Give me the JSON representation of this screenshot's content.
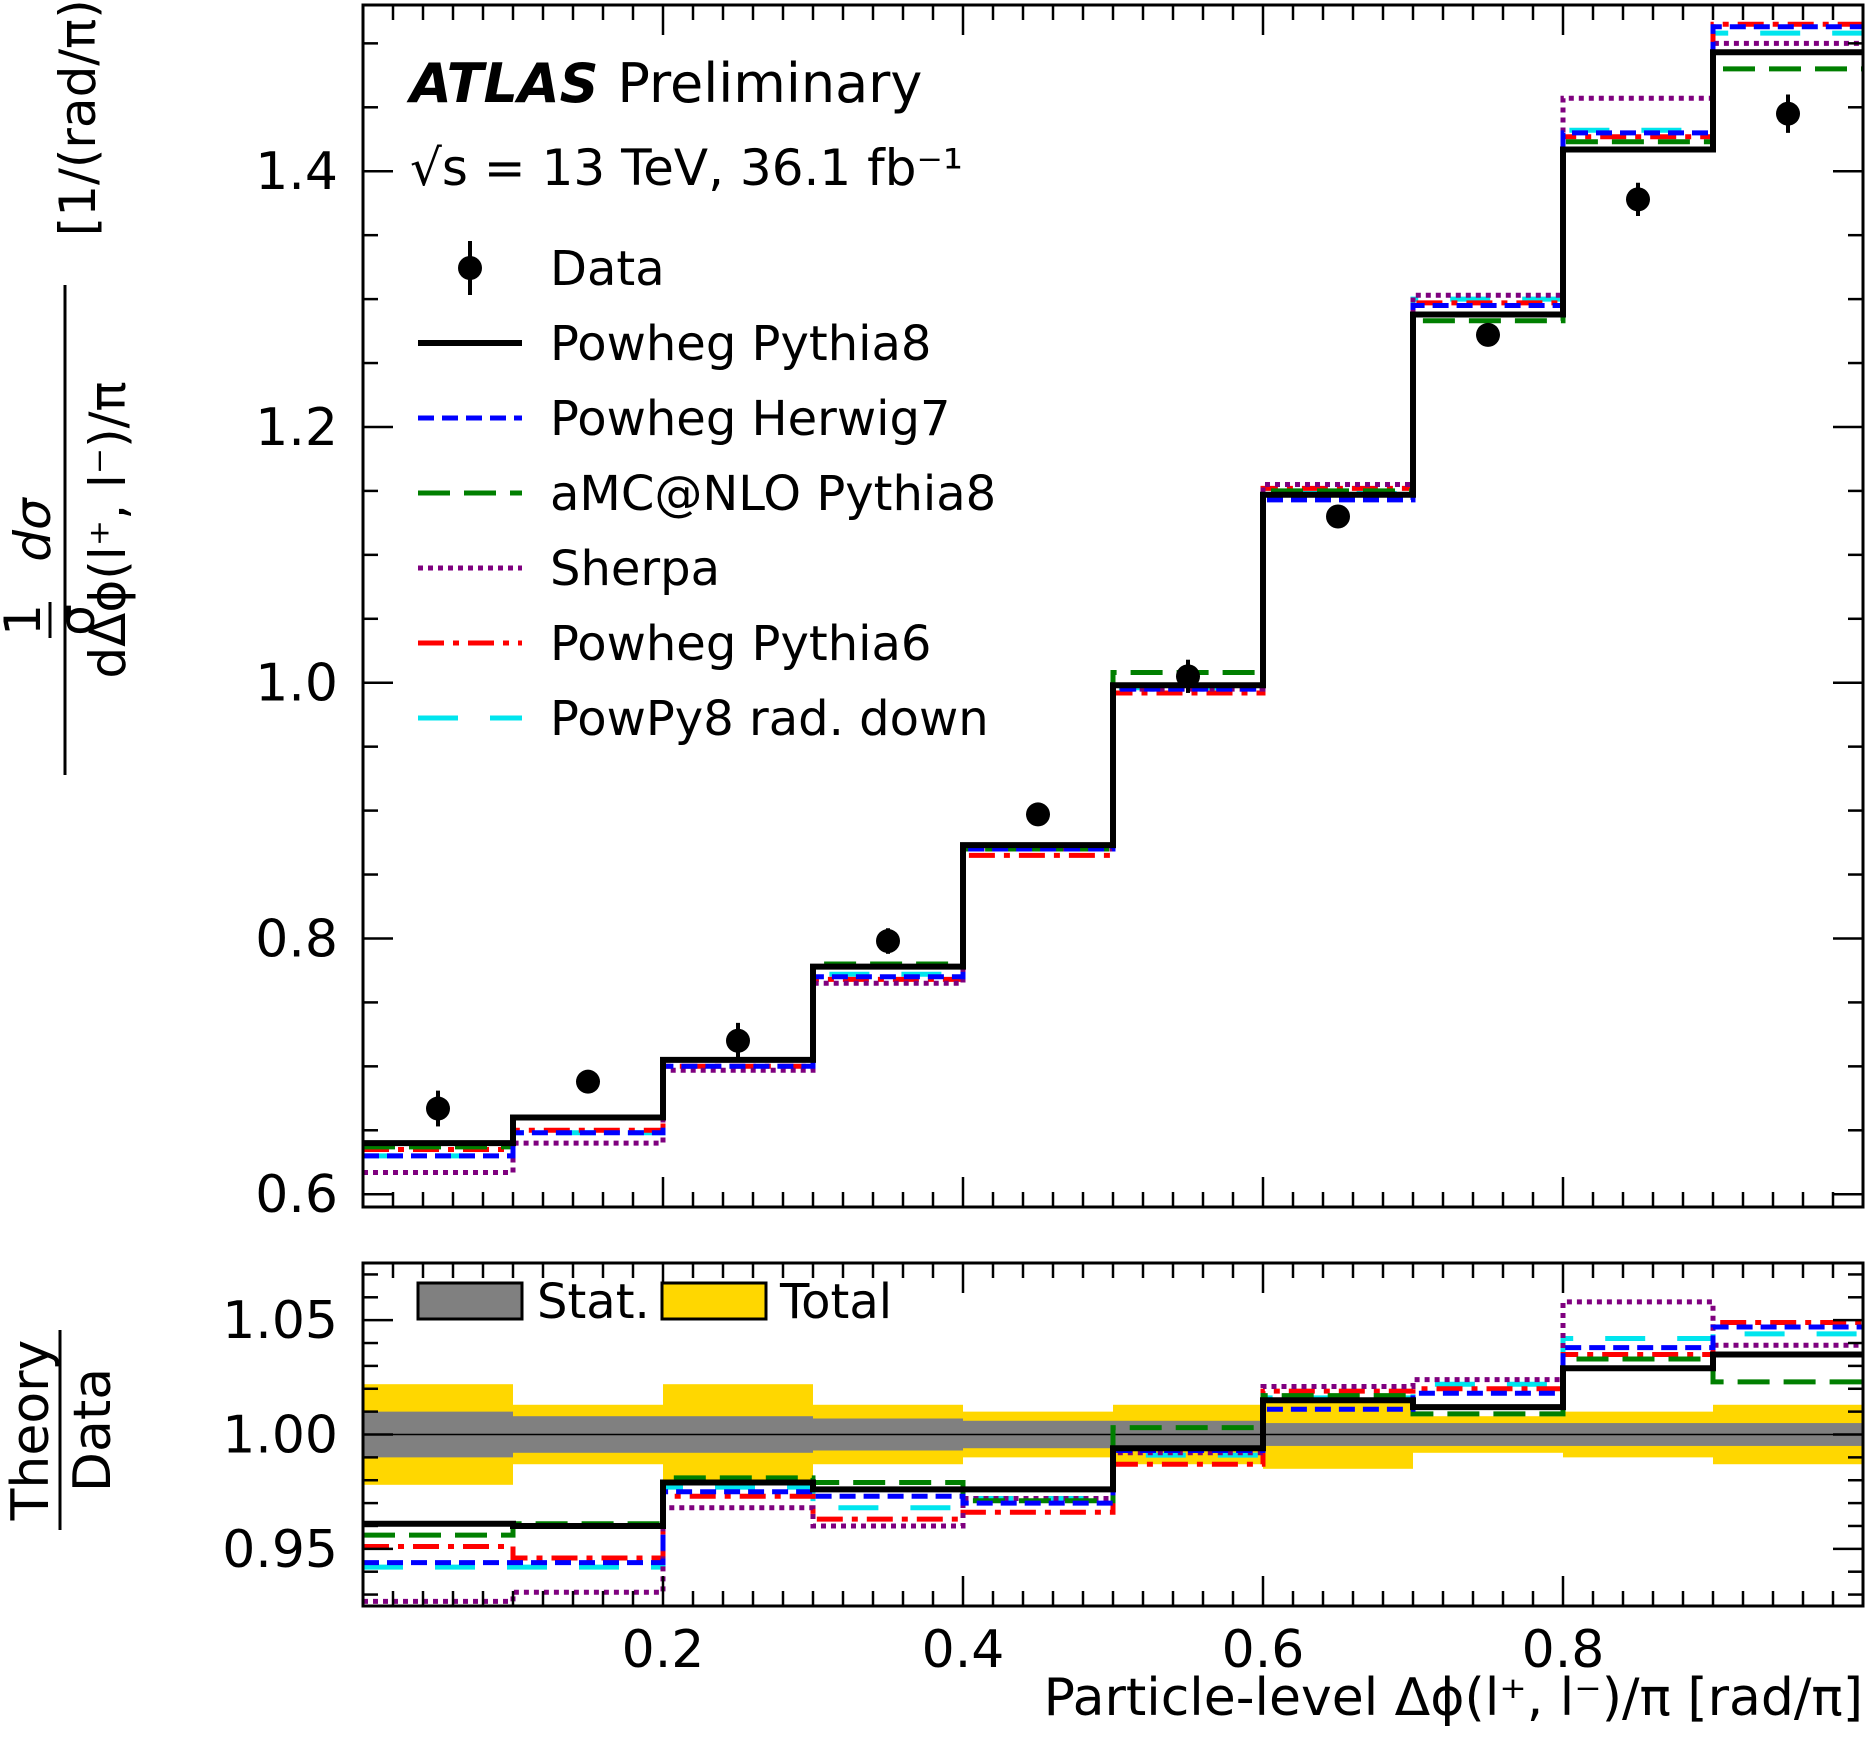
{
  "chart_data": {
    "type": "histogram-with-ratio",
    "experiment": "ATLAS",
    "status": "Preliminary",
    "energy_label": "√s = 13 TeV, 36.1 fb⁻¹",
    "bin_edges": [
      0.0,
      0.1,
      0.2,
      0.3,
      0.4,
      0.5,
      0.6,
      0.7,
      0.8,
      0.9,
      1.0
    ],
    "main_panel": {
      "ylabel_prefix": "1",
      "ylabel_sigma": "σ",
      "ylabel_num": "dσ",
      "ylabel_den": "dΔϕ(l⁺, l⁻)/π",
      "ylabel_unit": "[1/(rad/π)]",
      "ylim": [
        0.59,
        1.53
      ],
      "yticks": [
        0.6,
        0.8,
        1.0,
        1.2,
        1.4
      ],
      "ytick_labels": [
        "0.6",
        "0.8",
        "1.0",
        "1.2",
        "1.4"
      ],
      "data": {
        "name": "Data",
        "values": [
          0.667,
          0.688,
          0.72,
          0.798,
          0.897,
          1.005,
          1.13,
          1.272,
          1.378,
          1.445
        ],
        "errors": [
          0.014,
          0.008,
          0.014,
          0.01,
          0.006,
          0.013,
          0.008,
          0.008,
          0.013,
          0.015
        ]
      },
      "series": [
        {
          "name": "Powheg Pythia8",
          "color": "#000000",
          "style": "solid",
          "values": [
            0.64,
            0.66,
            0.705,
            0.778,
            0.873,
            0.998,
            1.147,
            1.288,
            1.417,
            1.493
          ]
        },
        {
          "name": "Powheg Herwig7",
          "color": "#0000ff",
          "style": "dashed",
          "values": [
            0.63,
            0.648,
            0.7,
            0.77,
            0.87,
            0.995,
            1.143,
            1.295,
            1.43,
            1.513
          ]
        },
        {
          "name": "aMC@NLO Pythia8",
          "color": "#007f00",
          "style": "longdash",
          "values": [
            0.637,
            0.66,
            0.705,
            0.78,
            0.87,
            1.008,
            1.15,
            1.283,
            1.423,
            1.48
          ]
        },
        {
          "name": "Sherpa",
          "color": "#7f007f",
          "style": "dotted",
          "values": [
            0.617,
            0.64,
            0.697,
            0.765,
            0.87,
            0.995,
            1.155,
            1.303,
            1.457,
            1.5
          ]
        },
        {
          "name": "Powheg Pythia6",
          "color": "#ff0000",
          "style": "dashdot",
          "values": [
            0.635,
            0.65,
            0.7,
            0.768,
            0.865,
            0.992,
            1.152,
            1.297,
            1.427,
            1.515
          ]
        },
        {
          "name": "PowPy8 rad. down",
          "color": "#00e5ee",
          "style": "widedash",
          "values": [
            0.63,
            0.648,
            0.705,
            0.772,
            0.872,
            0.996,
            1.148,
            1.3,
            1.432,
            1.508
          ]
        }
      ]
    },
    "ratio_panel": {
      "ylabel_top": "Theory",
      "ylabel_bottom": "Data",
      "ylim": [
        0.925,
        1.075
      ],
      "yticks": [
        0.95,
        1.0,
        1.05
      ],
      "ytick_labels": [
        "0.95",
        "1.00",
        "1.05"
      ],
      "stat_label": "Stat.",
      "total_label": "Total",
      "stat_color": "#808080",
      "total_color": "#ffd700",
      "stat_unc": [
        0.01,
        0.008,
        0.008,
        0.007,
        0.006,
        0.006,
        0.005,
        0.005,
        0.005,
        0.005
      ],
      "total_unc": [
        0.022,
        0.013,
        0.022,
        0.013,
        0.01,
        0.013,
        0.015,
        0.008,
        0.01,
        0.013
      ],
      "series": [
        {
          "name": "Powheg Pythia8",
          "values": [
            0.961,
            0.96,
            0.979,
            0.976,
            0.976,
            0.994,
            1.015,
            1.012,
            1.029,
            1.035
          ]
        },
        {
          "name": "Powheg Herwig7",
          "values": [
            0.944,
            0.944,
            0.975,
            0.973,
            0.97,
            0.993,
            1.011,
            1.018,
            1.038,
            1.047
          ]
        },
        {
          "name": "aMC@NLO Pythia8",
          "values": [
            0.956,
            0.961,
            0.981,
            0.979,
            0.971,
            1.003,
            1.017,
            1.009,
            1.033,
            1.023
          ]
        },
        {
          "name": "Sherpa",
          "values": [
            0.927,
            0.931,
            0.968,
            0.96,
            0.972,
            0.992,
            1.021,
            1.024,
            1.058,
            1.039
          ]
        },
        {
          "name": "Powheg Pythia6",
          "values": [
            0.951,
            0.946,
            0.973,
            0.963,
            0.966,
            0.987,
            1.019,
            1.02,
            1.035,
            1.049
          ]
        },
        {
          "name": "PowPy8 rad. down",
          "values": [
            0.942,
            0.942,
            0.977,
            0.968,
            0.972,
            0.991,
            1.016,
            1.022,
            1.042,
            1.044
          ]
        }
      ]
    },
    "x_axis": {
      "label": "Particle-level Δϕ(l⁺, l⁻)/π [rad/π]",
      "xlim": [
        0.0,
        1.0
      ],
      "ticks": [
        0.2,
        0.4,
        0.6,
        0.8
      ],
      "tick_labels": [
        "0.2",
        "0.4",
        "0.6",
        "0.8"
      ]
    },
    "legend": {
      "placement": "top-left"
    }
  }
}
